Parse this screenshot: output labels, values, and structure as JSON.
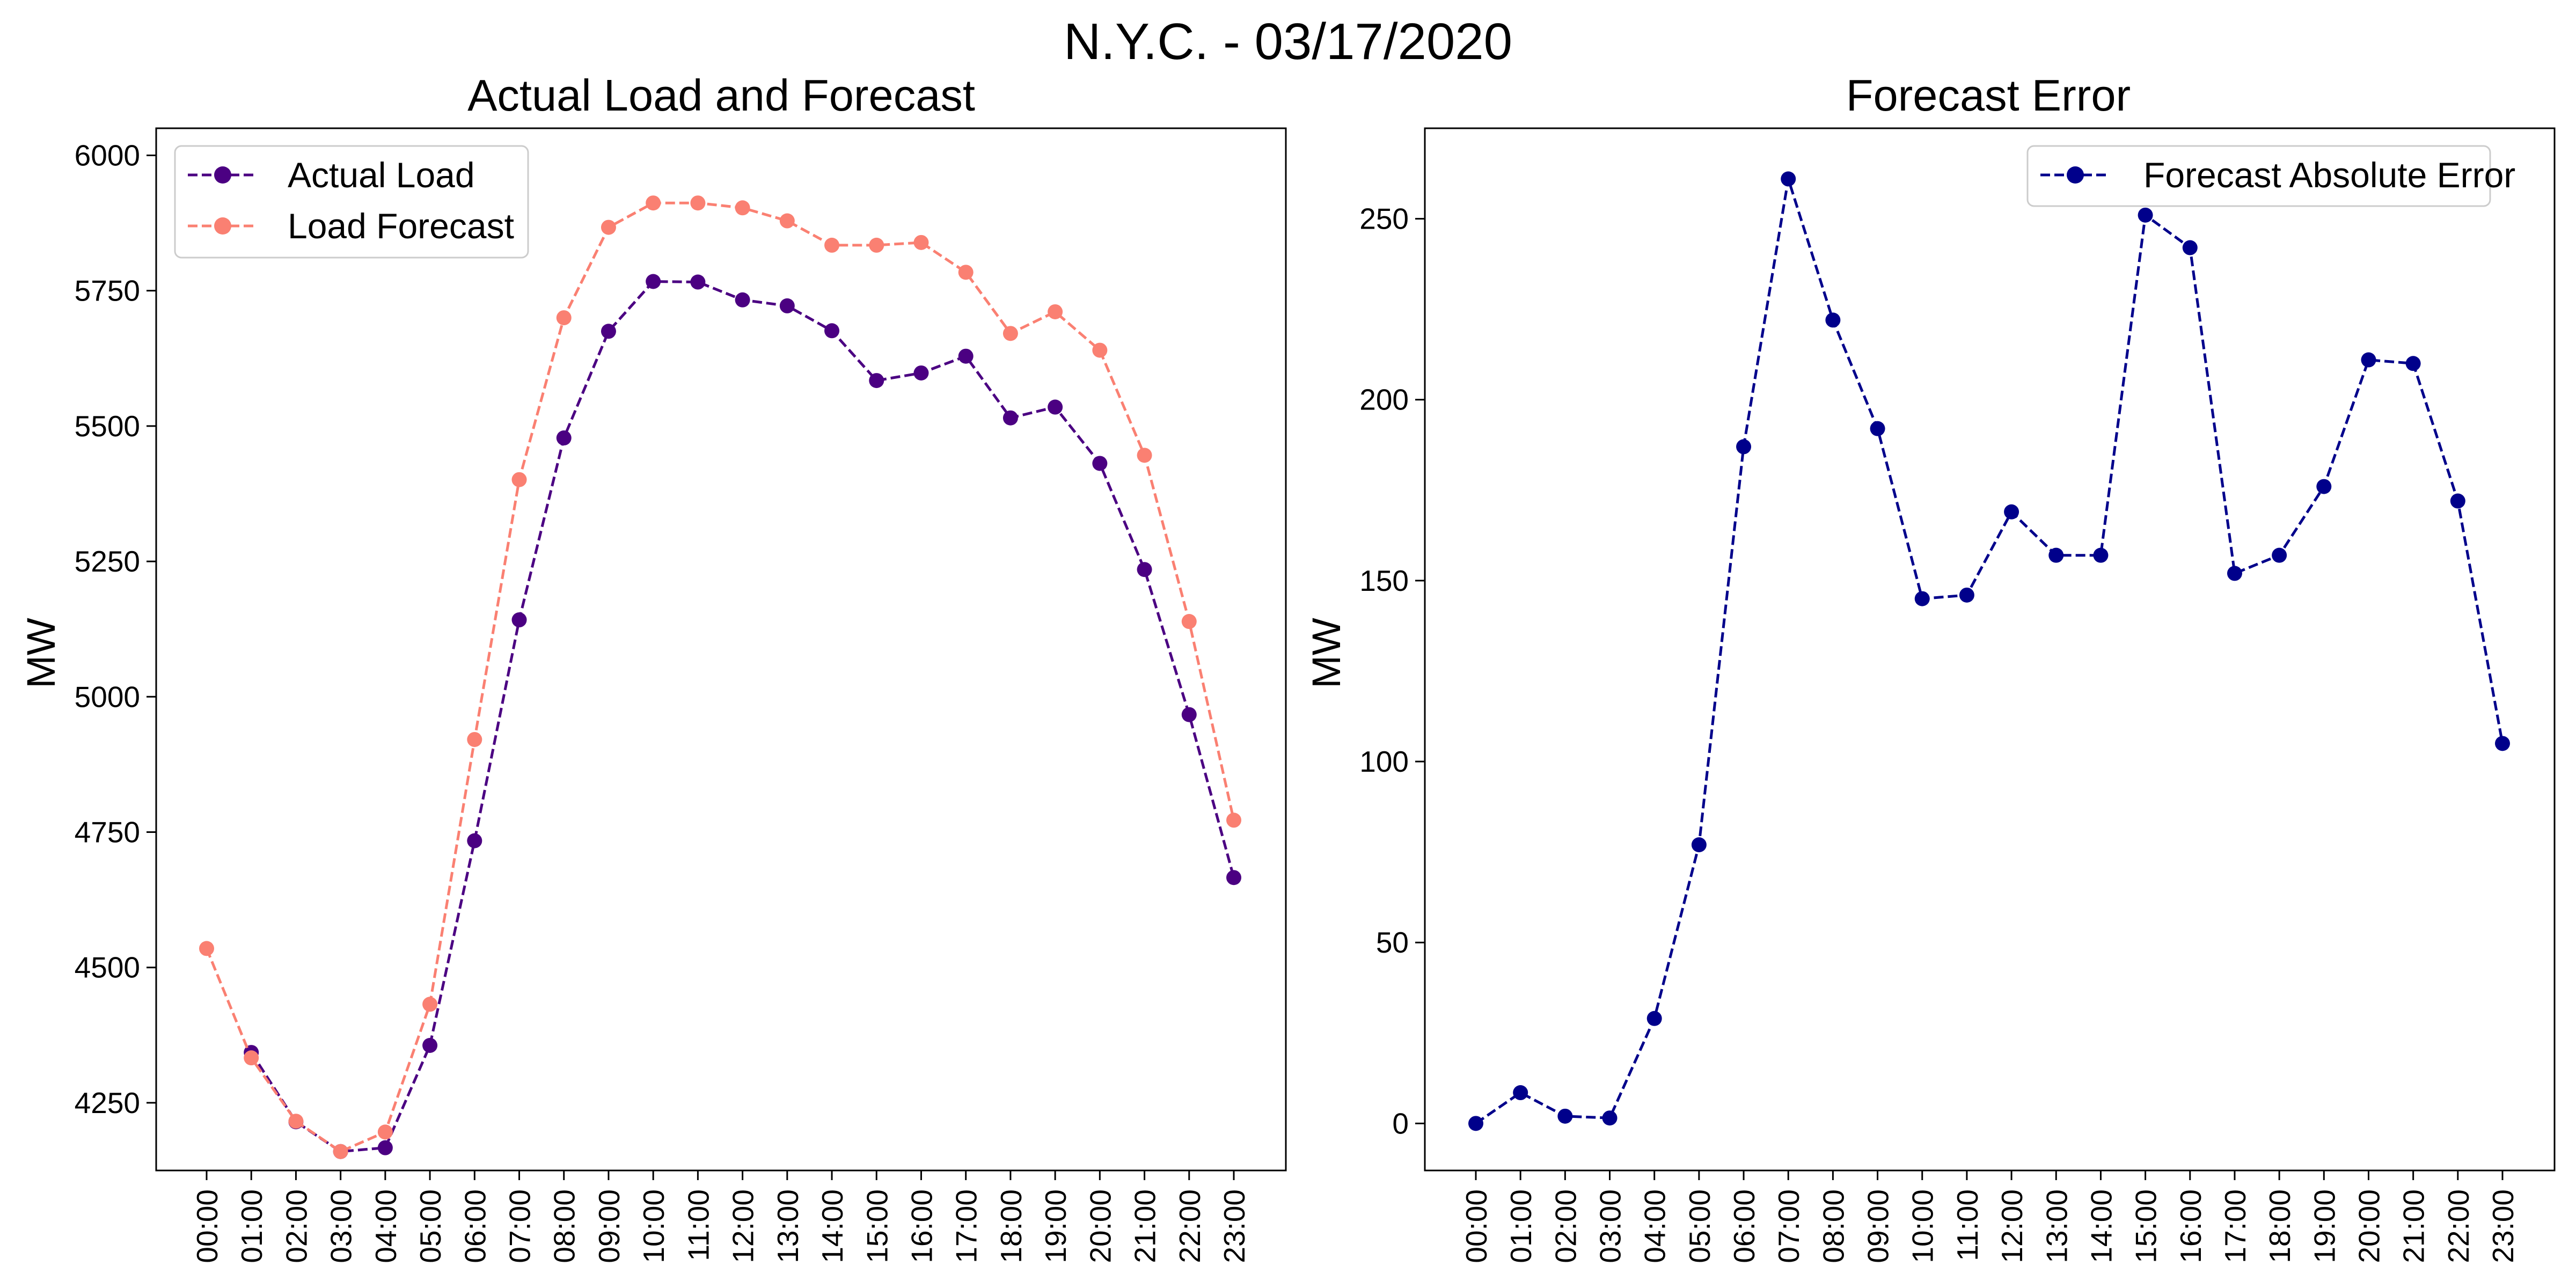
{
  "figure": {
    "suptitle": "N.Y.C. - 03/17/2020"
  },
  "chart_data": [
    {
      "type": "line",
      "title": "Actual Load and Forecast",
      "xlabel": "",
      "ylabel": "MW",
      "categories": [
        "00:00",
        "01:00",
        "02:00",
        "03:00",
        "04:00",
        "05:00",
        "06:00",
        "07:00",
        "08:00",
        "09:00",
        "10:00",
        "11:00",
        "12:00",
        "13:00",
        "14:00",
        "15:00",
        "16:00",
        "17:00",
        "18:00",
        "19:00",
        "20:00",
        "21:00",
        "22:00",
        "23:00"
      ],
      "y_ticks": [
        4250,
        4500,
        4750,
        5000,
        5250,
        5500,
        5750,
        6000
      ],
      "ylim": [
        4125,
        6050
      ],
      "grid": false,
      "legend_position": "top-left",
      "series": [
        {
          "name": "Actual Load",
          "color": "#4b0082",
          "line_style": "dashed",
          "marker": "circle",
          "values": [
            null,
            4343,
            4215,
            4160,
            4167,
            4356,
            4734,
            5142,
            5478,
            5675,
            5767,
            5766,
            5733,
            5722,
            5676,
            5584,
            5598,
            5629,
            5515,
            5535,
            5431,
            5235,
            4967,
            4666
          ]
        },
        {
          "name": "Load Forecast",
          "color": "#fa8072",
          "line_style": "dashed",
          "marker": "circle",
          "values": [
            4535,
            4333,
            4216,
            4160,
            4196,
            4432,
            4921,
            5401,
            5700,
            5867,
            5912,
            5912,
            5903,
            5879,
            5834,
            5834,
            5839,
            5784,
            5671,
            5711,
            5640,
            5446,
            5139,
            4772
          ]
        }
      ]
    },
    {
      "type": "line",
      "title": "Forecast Error",
      "xlabel": "",
      "ylabel": "MW",
      "categories": [
        "00:00",
        "01:00",
        "02:00",
        "03:00",
        "04:00",
        "05:00",
        "06:00",
        "07:00",
        "08:00",
        "09:00",
        "10:00",
        "11:00",
        "12:00",
        "13:00",
        "14:00",
        "15:00",
        "16:00",
        "17:00",
        "18:00",
        "19:00",
        "20:00",
        "21:00",
        "22:00",
        "23:00"
      ],
      "y_ticks": [
        0,
        50,
        100,
        150,
        200,
        250
      ],
      "ylim": [
        -13,
        275
      ],
      "grid": false,
      "legend_position": "top-right",
      "series": [
        {
          "name": "Forecast Absolute Error",
          "color": "#00008b",
          "line_style": "dashed",
          "marker": "circle",
          "values": [
            0,
            8.5,
            2,
            1.5,
            29,
            77,
            187,
            261,
            222,
            192,
            145,
            146,
            169,
            157,
            157,
            251,
            242,
            152,
            157,
            176,
            211,
            210,
            172,
            105
          ]
        }
      ]
    }
  ]
}
